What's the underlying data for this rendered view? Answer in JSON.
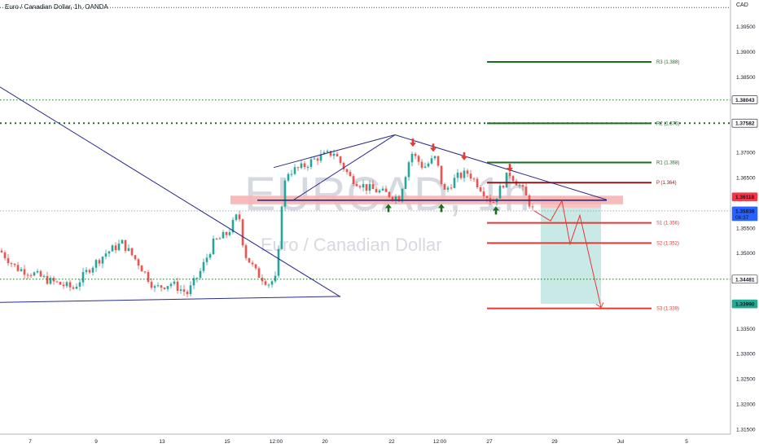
{
  "header": {
    "title": "Euro / Canadian Dollar, 1h, OANDA",
    "currency": "CAD"
  },
  "watermark": {
    "symbol": "EURCAD, 1h",
    "name": "Euro / Canadian Dollar"
  },
  "colors": {
    "up": "#26a69a",
    "down": "#ef5350",
    "trend": "#2b2b8c",
    "green_level": "#1b6e20",
    "red_level": "#e53935",
    "pivot": "#8b1a1a",
    "target_zone": "#b2dfdb",
    "resistance_zone": "#f5b5b5"
  },
  "chart_data": {
    "type": "candlestick",
    "ylim": [
      1.3145,
      1.399
    ],
    "y_ticks": [
      "1.39500",
      "1.39000",
      "1.38500",
      "1.37000",
      "1.36500",
      "1.35500",
      "1.35000",
      "1.34000",
      "1.33500",
      "1.33000",
      "1.32500",
      "1.32000",
      "1.31500"
    ],
    "x_ticks": [
      "7",
      "9",
      "13",
      "15",
      "12:00",
      "20",
      "22",
      "12:00",
      "27",
      "29",
      "Jul",
      "5"
    ],
    "grid": false,
    "price_tags": [
      {
        "value": "1.38043",
        "kind": "dotted"
      },
      {
        "value": "1.37582",
        "kind": "dotted-bold"
      },
      {
        "value": "1.36118",
        "kind": "red"
      },
      {
        "value": "1.35838",
        "kind": "blue",
        "sub": "06:37"
      },
      {
        "value": "1.34481",
        "kind": "dotted"
      },
      {
        "value": "1.33990",
        "kind": "teal"
      }
    ],
    "levels": [
      {
        "label": "R3 (1.388)",
        "value": 1.388,
        "color": "green"
      },
      {
        "label": "R2 (1.376)",
        "value": 1.3758,
        "color": "green"
      },
      {
        "label": "R1 (1.368)",
        "value": 1.368,
        "color": "green"
      },
      {
        "label": "P (1.364)",
        "value": 1.364,
        "color": "pivot"
      },
      {
        "label": "S1 (1.356)",
        "value": 1.356,
        "color": "red"
      },
      {
        "label": "S2 (1.352)",
        "value": 1.352,
        "color": "red"
      },
      {
        "label": "S3 (1.339)",
        "value": 1.339,
        "color": "red"
      }
    ],
    "candles_note": "approximate hourly OHLC path from early month through the 28th",
    "close_last": 1.35838
  }
}
